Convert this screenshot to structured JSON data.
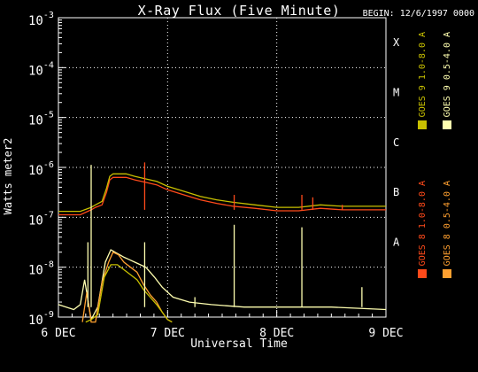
{
  "chart_data": {
    "type": "line",
    "title": "X-Ray Flux (Five Minute)",
    "begin_label": "BEGIN: 12/6/1997 0000",
    "xlabel": "Universal Time",
    "ylabel": "Watts meter2",
    "x_ticks": [
      "6 DEC",
      "7 DEC",
      "8 DEC",
      "9 DEC"
    ],
    "xlim_days": [
      0,
      3
    ],
    "ylim_log10": [
      -9,
      -3
    ],
    "y_ticks": [
      {
        "mantissa": "10",
        "exp": "-9"
      },
      {
        "mantissa": "10",
        "exp": "-8"
      },
      {
        "mantissa": "10",
        "exp": "-7"
      },
      {
        "mantissa": "10",
        "exp": "-6"
      },
      {
        "mantissa": "10",
        "exp": "-5"
      },
      {
        "mantissa": "10",
        "exp": "-4"
      },
      {
        "mantissa": "10",
        "exp": "-3"
      }
    ],
    "flare_classes": [
      {
        "label": "A",
        "log10": -7.5
      },
      {
        "label": "B",
        "log10": -6.5
      },
      {
        "label": "C",
        "log10": -5.5
      },
      {
        "label": "M",
        "log10": -4.5
      },
      {
        "label": "X",
        "log10": -3.5
      }
    ],
    "grid": "dotted",
    "legend_placement": "right",
    "colors": {
      "goes8_long": "#ff4a1a",
      "goes8_short": "#ffa030",
      "goes9_long": "#c8c000",
      "goes9_short": "#ffffb0"
    },
    "legend": [
      {
        "label": "GOES 8  1.0-8.0 A",
        "color": "#ff4a1a"
      },
      {
        "label": "GOES 9  1.0-8.0 A",
        "color": "#c8c000"
      },
      {
        "label": "GOES 8  0.5-4.0 A",
        "color": "#ffa030"
      },
      {
        "label": "GOES 9  0.5-4.0 A",
        "color": "#ffffb0"
      }
    ],
    "series": [
      {
        "name": "GOES 9  0.5-4.0 A",
        "key": "goes9_short",
        "x": [
          0,
          0.14,
          0.2,
          0.24,
          0.3,
          0.36,
          0.43,
          0.48,
          0.52,
          0.56,
          0.6,
          0.65,
          0.7,
          0.75,
          0.8,
          0.88,
          0.95,
          1.05,
          1.2,
          1.4,
          1.7,
          2.0,
          2.5,
          3.0
        ],
        "y_log10": [
          -8.75,
          -8.85,
          -8.75,
          -8.25,
          -9.05,
          -8.8,
          -7.9,
          -7.65,
          -7.7,
          -7.75,
          -7.8,
          -7.85,
          -7.9,
          -7.95,
          -8.0,
          -8.2,
          -8.4,
          -8.6,
          -8.7,
          -8.75,
          -8.8,
          -8.8,
          -8.8,
          -8.85
        ]
      },
      {
        "name": "GOES 8  0.5-4.0 A",
        "key": "goes8_short",
        "x": [
          0.22,
          0.26,
          0.3,
          0.34,
          0.4,
          0.46,
          0.5,
          0.55,
          0.6,
          0.66,
          0.72,
          0.78,
          0.84,
          0.9,
          0.95,
          1.0,
          1.04
        ],
        "y_log10": [
          -9.1,
          -8.5,
          -9.1,
          -9.1,
          -8.3,
          -7.9,
          -7.7,
          -7.75,
          -7.9,
          -8.0,
          -8.1,
          -8.35,
          -8.55,
          -8.7,
          -8.9,
          -9.05,
          -9.1
        ]
      },
      {
        "name": "GOES 9  1.0-8.0 A",
        "key": "goes9_long",
        "x": [
          0.25,
          0.3,
          0.36,
          0.42,
          0.48,
          0.54,
          0.6,
          0.66,
          0.72,
          0.78,
          0.84,
          0.9,
          0.95,
          1.0,
          1.04
        ],
        "y_log10": [
          -9.1,
          -9.05,
          -8.95,
          -8.2,
          -7.95,
          -7.95,
          -8.05,
          -8.15,
          -8.25,
          -8.45,
          -8.6,
          -8.75,
          -8.9,
          -9.05,
          -9.1
        ]
      },
      {
        "name": "GOES 8  1.0-8.0 A",
        "key": "goes8_long",
        "x": [
          0,
          0.1,
          0.2,
          0.3,
          0.34,
          0.4,
          0.44,
          0.47,
          0.5,
          0.55,
          0.62,
          0.7,
          0.8,
          0.9,
          1.0,
          1.15,
          1.3,
          1.45,
          1.6,
          1.8,
          2.0,
          2.2,
          2.4,
          2.6,
          2.8,
          3.0
        ],
        "y_log10": [
          -6.95,
          -6.95,
          -6.95,
          -6.85,
          -6.8,
          -6.75,
          -6.5,
          -6.25,
          -6.2,
          -6.2,
          -6.2,
          -6.25,
          -6.3,
          -6.35,
          -6.45,
          -6.55,
          -6.65,
          -6.72,
          -6.78,
          -6.82,
          -6.87,
          -6.87,
          -6.82,
          -6.85,
          -6.85,
          -6.85
        ]
      },
      {
        "name": "GOES 9  1.0-8.0 A (upper)",
        "key": "goes9_long",
        "x": [
          0,
          0.1,
          0.2,
          0.3,
          0.34,
          0.4,
          0.44,
          0.47,
          0.5,
          0.55,
          0.62,
          0.7,
          0.8,
          0.9,
          1.0,
          1.15,
          1.3,
          1.45,
          1.6,
          1.8,
          2.0,
          2.2,
          2.4,
          2.6,
          2.8,
          3.0
        ],
        "y_log10": [
          -6.88,
          -6.88,
          -6.88,
          -6.8,
          -6.75,
          -6.68,
          -6.42,
          -6.18,
          -6.13,
          -6.13,
          -6.13,
          -6.18,
          -6.23,
          -6.28,
          -6.38,
          -6.48,
          -6.58,
          -6.65,
          -6.7,
          -6.75,
          -6.8,
          -6.8,
          -6.75,
          -6.78,
          -6.78,
          -6.78
        ]
      }
    ],
    "spikes": [
      {
        "x": 0.3,
        "y_log10": -5.95,
        "key": "goes9_short"
      },
      {
        "x": 0.79,
        "y_log10": -5.9,
        "key": "goes8_long"
      },
      {
        "x": 0.27,
        "y_log10": -7.5,
        "key": "goes9_short"
      },
      {
        "x": 0.79,
        "y_log10": -7.5,
        "key": "goes9_short"
      },
      {
        "x": 1.25,
        "y_log10": -8.6,
        "key": "goes9_short"
      },
      {
        "x": 1.61,
        "y_log10": -7.15,
        "key": "goes9_short"
      },
      {
        "x": 1.61,
        "y_log10": -6.55,
        "key": "goes8_long"
      },
      {
        "x": 2.23,
        "y_log10": -7.2,
        "key": "goes9_short"
      },
      {
        "x": 2.23,
        "y_log10": -6.55,
        "key": "goes8_long"
      },
      {
        "x": 2.33,
        "y_log10": -6.6,
        "key": "goes8_long"
      },
      {
        "x": 2.6,
        "y_log10": -6.75,
        "key": "goes8_long"
      },
      {
        "x": 2.78,
        "y_log10": -8.4,
        "key": "goes9_short"
      }
    ]
  }
}
